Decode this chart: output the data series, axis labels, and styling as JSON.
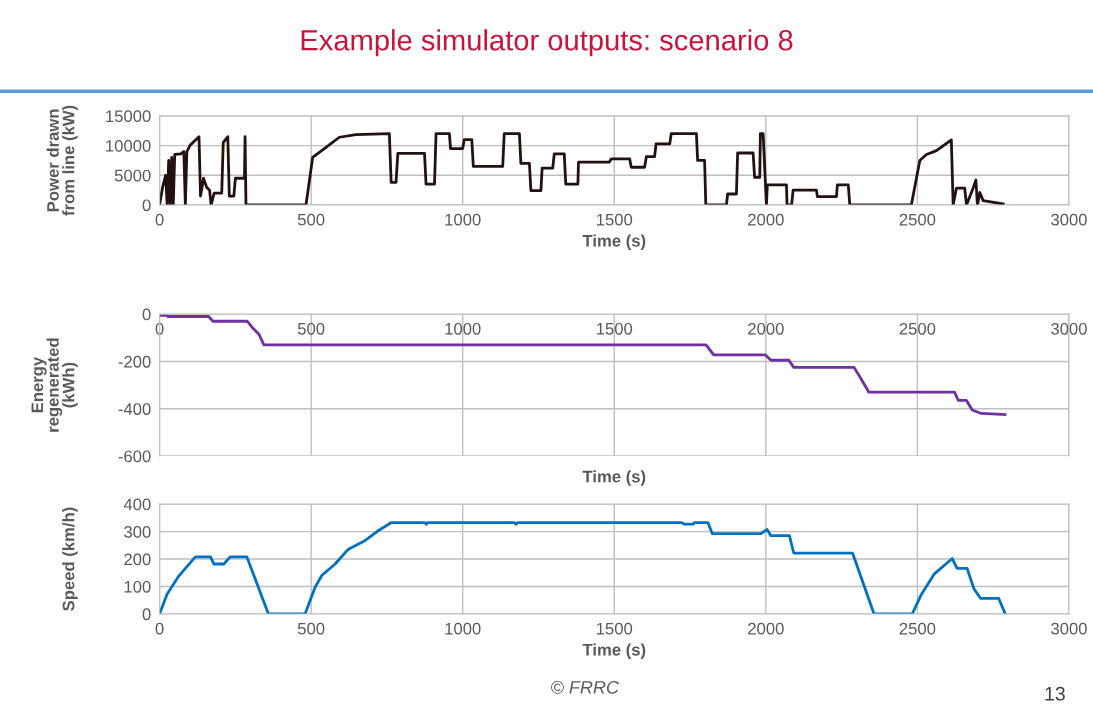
{
  "chart_data": [
    {
      "type": "line",
      "title": "Example simulator outputs: scenario 8",
      "xlabel": "Time (s)",
      "ylabel": "Power drawn\nfrom line (kW)",
      "xlim": [
        0,
        3000
      ],
      "xticks": [
        0,
        500,
        1000,
        1500,
        2000,
        2500,
        3000
      ],
      "ylim": [
        0,
        15000
      ],
      "yticks": [
        0,
        5000,
        10000,
        15000
      ],
      "grid": true,
      "series": [
        {
          "color": "#231010",
          "x": [
            0,
            10,
            20,
            25,
            30,
            35,
            40,
            45,
            50,
            70,
            80,
            85,
            90,
            100,
            110,
            130,
            135,
            145,
            155,
            165,
            170,
            180,
            205,
            210,
            225,
            230,
            235,
            245,
            250,
            280,
            282,
            285,
            483,
            505,
            549,
            593,
            648,
            758,
            764,
            780,
            786,
            874,
            879,
            907,
            912,
            956,
            960,
            1000,
            1005,
            1030,
            1035,
            1132,
            1137,
            1187,
            1192,
            1220,
            1225,
            1258,
            1262,
            1297,
            1302,
            1335,
            1340,
            1380,
            1382,
            1483,
            1490,
            1551,
            1556,
            1600,
            1606,
            1633,
            1638,
            1683,
            1688,
            1771,
            1775,
            1798,
            1802,
            1870,
            1874,
            1903,
            1907,
            1958,
            1963,
            1980,
            1982,
            1991,
            2002,
            2005,
            2068,
            2070,
            2085,
            2090,
            2167,
            2170,
            2233,
            2236,
            2272,
            2277,
            2480,
            2508,
            2530,
            2563,
            2612,
            2618,
            2629,
            2656,
            2662,
            2684,
            2693,
            2698,
            2706,
            2717,
            2783
          ],
          "values": [
            0,
            3000,
            5000,
            0,
            7500,
            0,
            8000,
            0,
            8500,
            8600,
            9000,
            0,
            9000,
            10000,
            10500,
            11500,
            1500,
            4500,
            3000,
            2500,
            0,
            2000,
            2000,
            10500,
            11500,
            1500,
            1500,
            1500,
            4500,
            4500,
            11500,
            0,
            0,
            8000,
            9700,
            11400,
            11850,
            12000,
            3800,
            3800,
            8700,
            8700,
            3500,
            3500,
            12000,
            12000,
            9500,
            9500,
            11000,
            11000,
            6500,
            6500,
            12000,
            12000,
            7000,
            7000,
            2400,
            2400,
            6200,
            6200,
            8600,
            8600,
            3500,
            3500,
            7200,
            7200,
            7750,
            7750,
            6350,
            6350,
            8150,
            8150,
            10300,
            10300,
            12000,
            12000,
            7500,
            7500,
            0,
            0,
            1850,
            1850,
            8750,
            8750,
            4650,
            4650,
            12000,
            12000,
            0,
            3400,
            3400,
            0,
            0,
            2500,
            2500,
            1400,
            1400,
            3400,
            3400,
            0,
            0,
            7500,
            8500,
            9150,
            10950,
            0,
            2850,
            2850,
            0,
            2850,
            4200,
            0,
            2100,
            730,
            170
          ]
        }
      ]
    },
    {
      "type": "line",
      "xlabel": "Time (s)",
      "ylabel": "Energy\nregenerated\n(kWh)",
      "xlim": [
        0,
        3000
      ],
      "xticks": [
        0,
        500,
        1000,
        1500,
        2000,
        2500,
        3000
      ],
      "ylim": [
        -600,
        0
      ],
      "yticks": [
        -600,
        -400,
        -200,
        0
      ],
      "grid": true,
      "series": [
        {
          "color": "#7030a0",
          "x": [
            0,
            25,
            27,
            162,
            176,
            289,
            305,
            328,
            344,
            1803,
            1828,
            1998,
            2017,
            2076,
            2092,
            2291,
            2310,
            2340,
            2623,
            2635,
            2662,
            2681,
            2711,
            2789
          ],
          "values": [
            -5,
            -5,
            -10,
            -10,
            -30,
            -30,
            -55,
            -85,
            -130,
            -130,
            -172,
            -172,
            -195,
            -195,
            -225,
            -225,
            -265,
            -330,
            -330,
            -365,
            -365,
            -405,
            -420,
            -425
          ]
        }
      ]
    },
    {
      "type": "line",
      "xlabel": "Time (s)",
      "ylabel": "Speed (km/h)",
      "xlim": [
        0,
        3000
      ],
      "xticks": [
        0,
        500,
        1000,
        1500,
        2000,
        2500,
        3000
      ],
      "ylim": [
        0,
        400
      ],
      "yticks": [
        0,
        100,
        200,
        300,
        400
      ],
      "grid": true,
      "annotations": [
        "© FRRC",
        "13"
      ],
      "series": [
        {
          "color": "#0070c0",
          "x": [
            0,
            25,
            64,
            118,
            168,
            179,
            212,
            233,
            288,
            359,
            480,
            513,
            535,
            579,
            623,
            677,
            721,
            765,
            875,
            880,
            885,
            1170,
            1176,
            1182,
            1721,
            1732,
            1760,
            1765,
            1809,
            1823,
            1984,
            2004,
            2017,
            2078,
            2092,
            2286,
            2357,
            2483,
            2511,
            2555,
            2615,
            2631,
            2664,
            2686,
            2708,
            2768,
            2790
          ],
          "values": [
            0,
            73,
            139,
            208,
            208,
            182,
            182,
            208,
            208,
            0,
            0,
            97,
            140,
            182,
            236,
            267,
            303,
            333,
            333,
            327,
            333,
            333,
            327,
            333,
            333,
            327,
            327,
            333,
            333,
            293,
            293,
            308,
            285,
            285,
            222,
            222,
            0,
            0,
            67,
            145,
            202,
            166,
            166,
            93,
            57,
            57,
            0
          ]
        }
      ]
    }
  ]
}
